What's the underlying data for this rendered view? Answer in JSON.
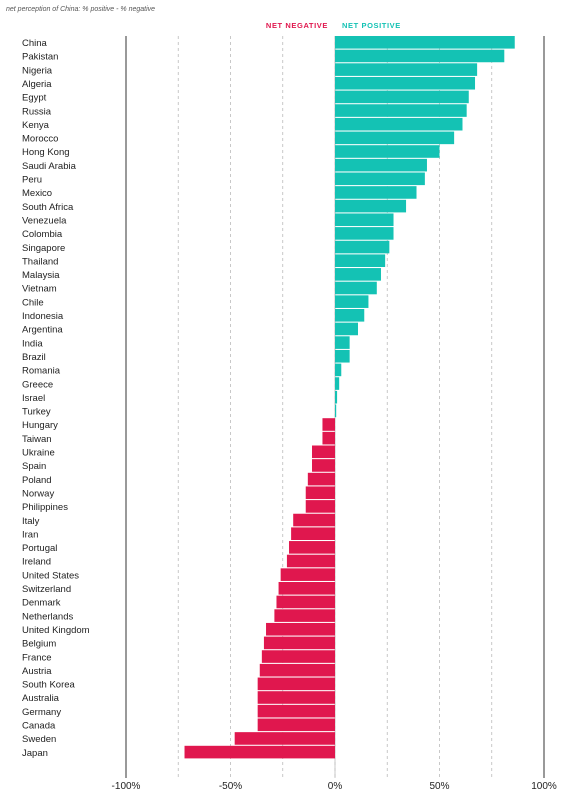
{
  "chart_data": {
    "type": "bar",
    "orientation": "horizontal",
    "subtitle": "net perception of China: % positive - % negative",
    "legend": {
      "negative_label": "NET NEGATIVE",
      "positive_label": "NET POSITIVE",
      "placement": "top-center"
    },
    "colors": {
      "positive": "#14c2b4",
      "negative": "#e0174e",
      "axis": "#333333",
      "grid": "#bbbbbb"
    },
    "xlim": [
      -100,
      100
    ],
    "xticks": [
      -100,
      -50,
      0,
      50,
      100
    ],
    "xtick_labels": [
      "-100%",
      "-50%",
      "0%",
      "50%",
      "100%"
    ],
    "grid": "dashed vertical lines every 25%",
    "categories": [
      "China",
      "Pakistan",
      "Nigeria",
      "Algeria",
      "Egypt",
      "Russia",
      "Kenya",
      "Morocco",
      "Hong Kong",
      "Saudi Arabia",
      "Peru",
      "Mexico",
      "South Africa",
      "Venezuela",
      "Colombia",
      "Singapore",
      "Thailand",
      "Malaysia",
      "Vietnam",
      "Chile",
      "Indonesia",
      "Argentina",
      "India",
      "Brazil",
      "Romania",
      "Greece",
      "Israel",
      "Turkey",
      "Hungary",
      "Taiwan",
      "Ukraine",
      "Spain",
      "Poland",
      "Norway",
      "Philippines",
      "Italy",
      "Iran",
      "Portugal",
      "Ireland",
      "United States",
      "Switzerland",
      "Denmark",
      "Netherlands",
      "United Kingdom",
      "Belgium",
      "France",
      "Austria",
      "South Korea",
      "Australia",
      "Germany",
      "Canada",
      "Sweden",
      "Japan"
    ],
    "values": [
      86,
      81,
      68,
      67,
      64,
      63,
      61,
      57,
      50,
      44,
      43,
      39,
      34,
      28,
      28,
      26,
      24,
      22,
      20,
      16,
      14,
      11,
      7,
      7,
      3,
      2,
      1,
      0,
      -6,
      -6,
      -11,
      -11,
      -13,
      -14,
      -14,
      -20,
      -21,
      -22,
      -23,
      -26,
      -27,
      -28,
      -29,
      -33,
      -34,
      -35,
      -36,
      -37,
      -37,
      -37,
      -37,
      -48,
      -72
    ]
  }
}
